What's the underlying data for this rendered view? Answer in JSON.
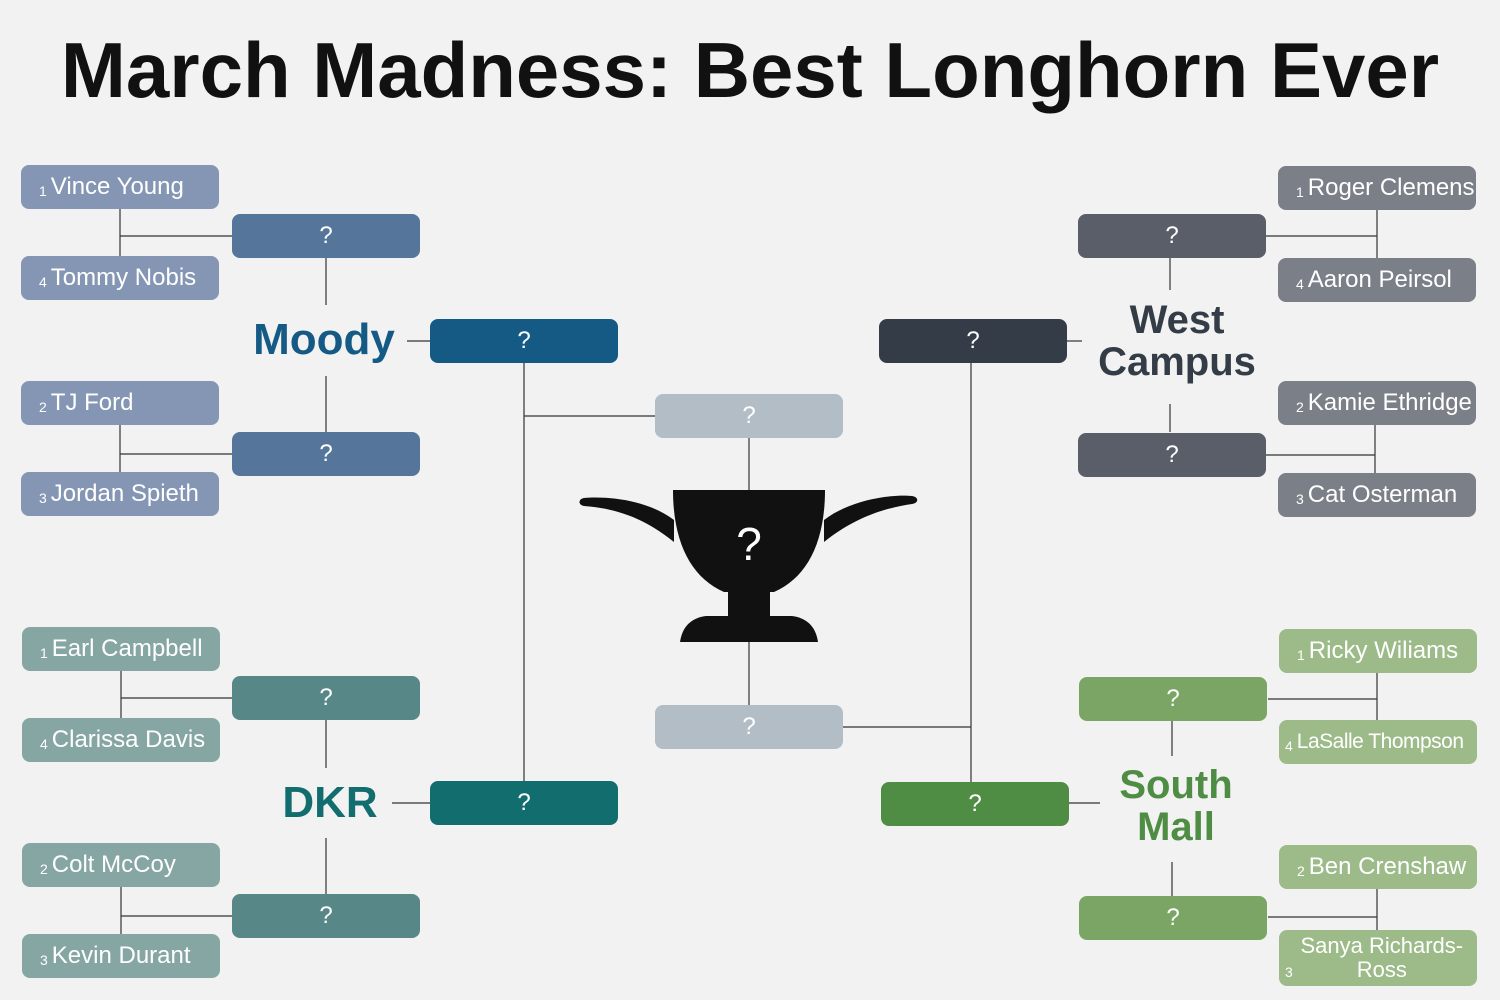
{
  "title": "March Madness: Best Longhorn Ever",
  "placeholder": "?",
  "colors": {
    "moody_team": "#8496b4",
    "moody_win": "#55769a",
    "moody_region": "#155a85",
    "dkr_team": "#86a6a4",
    "dkr_win": "#578887",
    "dkr_region": "#116d6e",
    "west_team": "#7b7f88",
    "west_win": "#595e68",
    "west_region": "#343d47",
    "south_team": "#9cbb89",
    "south_win": "#7ba565",
    "south_region": "#4f8d44",
    "final_four": "#b2bdc6",
    "trophy": "#111111",
    "line": "#333333"
  },
  "regions": {
    "moody": {
      "name": "Moody",
      "teams": [
        {
          "seed": "1",
          "name": "Vince Young"
        },
        {
          "seed": "4",
          "name": "Tommy Nobis"
        },
        {
          "seed": "2",
          "name": "TJ Ford"
        },
        {
          "seed": "3",
          "name": "Jordan Spieth"
        }
      ]
    },
    "dkr": {
      "name": "DKR",
      "teams": [
        {
          "seed": "1",
          "name": "Earl Campbell"
        },
        {
          "seed": "4",
          "name": "Clarissa Davis"
        },
        {
          "seed": "2",
          "name": "Colt McCoy"
        },
        {
          "seed": "3",
          "name": "Kevin Durant"
        }
      ]
    },
    "west": {
      "name": "West Campus",
      "teams": [
        {
          "seed": "1",
          "name": "Roger Clemens"
        },
        {
          "seed": "4",
          "name": "Aaron Peirsol"
        },
        {
          "seed": "2",
          "name": "Kamie Ethridge"
        },
        {
          "seed": "3",
          "name": "Cat Osterman"
        }
      ]
    },
    "south": {
      "name": "South Mall",
      "teams": [
        {
          "seed": "1",
          "name": "Ricky Wiliams"
        },
        {
          "seed": "4",
          "name": "LaSalle Thompson"
        },
        {
          "seed": "2",
          "name": "Ben Crenshaw"
        },
        {
          "seed": "3",
          "name": "Sanya Richards-Ross"
        }
      ]
    }
  },
  "icons": {
    "trophy": "longhorn-trophy-icon"
  }
}
